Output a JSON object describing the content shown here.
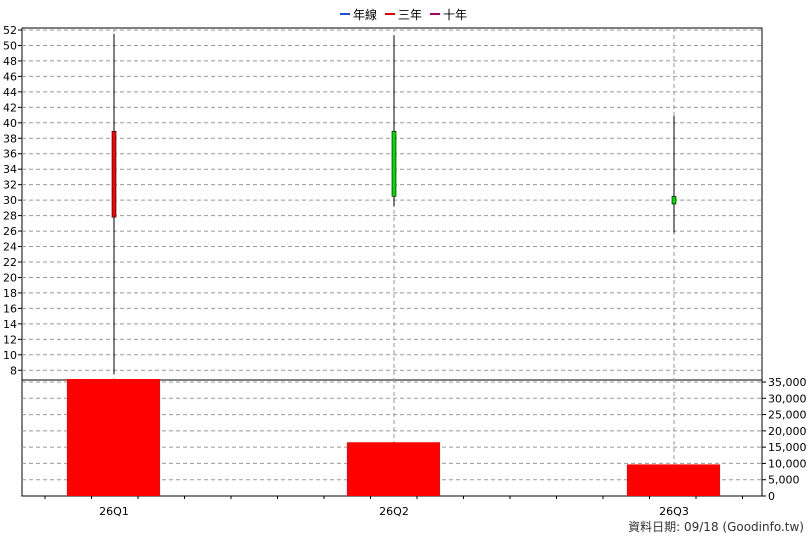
{
  "chart_data": {
    "type": "candlestick_with_volume",
    "legend": [
      {
        "label": "年線",
        "color": "#1f4fd8"
      },
      {
        "label": "三年",
        "color": "#e00000"
      },
      {
        "label": "十年",
        "color": "#a0006a"
      }
    ],
    "categories": [
      "26Q1",
      "26Q2",
      "26Q3"
    ],
    "price": {
      "ylim": [
        7,
        52
      ],
      "ticks": [
        8,
        10,
        12,
        14,
        16,
        18,
        20,
        22,
        24,
        26,
        28,
        30,
        32,
        34,
        36,
        38,
        40,
        42,
        44,
        46,
        48,
        50,
        52
      ],
      "ohlc": [
        {
          "open": 27.8,
          "high": 51.5,
          "low": 7.5,
          "close": 38.9,
          "color": "#ff0000"
        },
        {
          "open": 38.9,
          "high": 51.3,
          "low": 29.2,
          "close": 30.5,
          "color": "#00dd00"
        },
        {
          "open": 30.5,
          "high": 40.9,
          "low": 25.8,
          "close": 29.5,
          "color": "#00dd00"
        }
      ]
    },
    "volume": {
      "ylim": [
        0,
        35000
      ],
      "ticks": [
        "0",
        "5,000",
        "10,000",
        "15,000",
        "20,000",
        "25,000",
        "30,000",
        "35,000"
      ],
      "tick_values": [
        0,
        5000,
        10000,
        15000,
        20000,
        25000,
        30000,
        35000
      ],
      "values": [
        36500,
        16500,
        9700
      ],
      "color": "#ff0000"
    },
    "grid": true
  },
  "footer": "資料日期: 09/18  (Goodinfo.tw)"
}
